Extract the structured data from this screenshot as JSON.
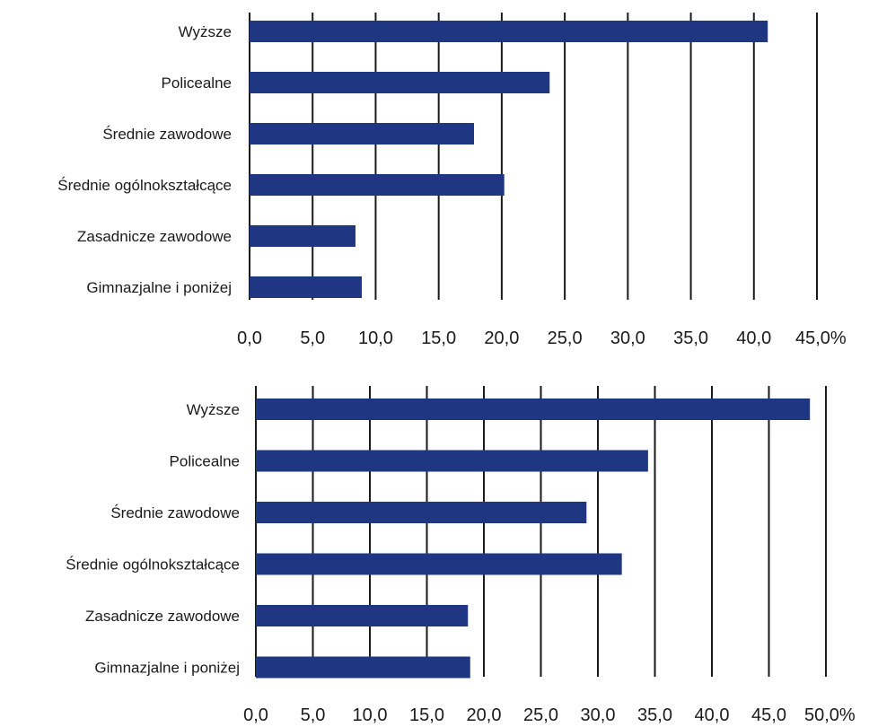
{
  "chart_data": [
    {
      "type": "bar",
      "orientation": "horizontal",
      "title": "",
      "xlabel": "",
      "ylabel": "",
      "categories": [
        "Wyższe",
        "Policealne",
        "Średnie zawodowe",
        "Średnie ogólnokształcące",
        "Zasadnicze zawodowe",
        "Gimnazjalne i poniżej"
      ],
      "values": [
        41.1,
        23.8,
        17.8,
        20.2,
        8.4,
        8.9
      ],
      "xlim": [
        0,
        45
      ],
      "xticks": [
        "0,0",
        "5,0",
        "10,0",
        "15,0",
        "20,0",
        "25,0",
        "30,0",
        "35,0",
        "40,0",
        "45,0%"
      ],
      "grid": true,
      "bar_color": "#1f3683"
    },
    {
      "type": "bar",
      "orientation": "horizontal",
      "title": "",
      "xlabel": "",
      "ylabel": "",
      "categories": [
        "Wyższe",
        "Policealne",
        "Średnie zawodowe",
        "Średnie ogólnokształcące",
        "Zasadnicze zawodowe",
        "Gimnazjalne i poniżej"
      ],
      "values": [
        48.6,
        34.4,
        29.0,
        32.1,
        18.6,
        18.8
      ],
      "xlim": [
        0,
        50
      ],
      "xticks": [
        "0,0",
        "5,0",
        "10,0",
        "15,0",
        "20,0",
        "25,0",
        "30,0",
        "35,0",
        "40,0",
        "45,0",
        "50,0%"
      ],
      "grid": true,
      "bar_color": "#1f3683"
    }
  ]
}
